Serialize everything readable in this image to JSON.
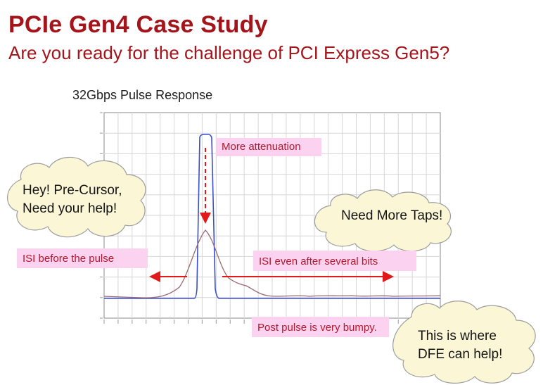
{
  "header": {
    "title": "PCIe Gen4 Case Study",
    "subtitle": "Are you ready for the challenge of PCI Express Gen5?"
  },
  "chart": {
    "title": "32Gbps Pulse Response"
  },
  "annotations": {
    "more_attenuation": "More attenuation",
    "isi_before": "ISI before the pulse",
    "isi_after": "ISI even after several bits",
    "post_pulse": "Post pulse is very bumpy."
  },
  "clouds": {
    "precursor_line1": "Hey! Pre-Cursor,",
    "precursor_line2": "Need your help!",
    "more_taps": "Need More Taps!",
    "dfe_line1": "This is where",
    "dfe_line2": "DFE can help!"
  },
  "colors": {
    "title": "#a4151b",
    "ideal_pulse": "#3b4fc8",
    "attenuated_pulse": "#9a6a6e",
    "arrow": "#e01a1a",
    "label_bg": "#fbd3f0",
    "cloud_fill": "#fbf6d6",
    "grid": "#d4d4d4"
  }
}
